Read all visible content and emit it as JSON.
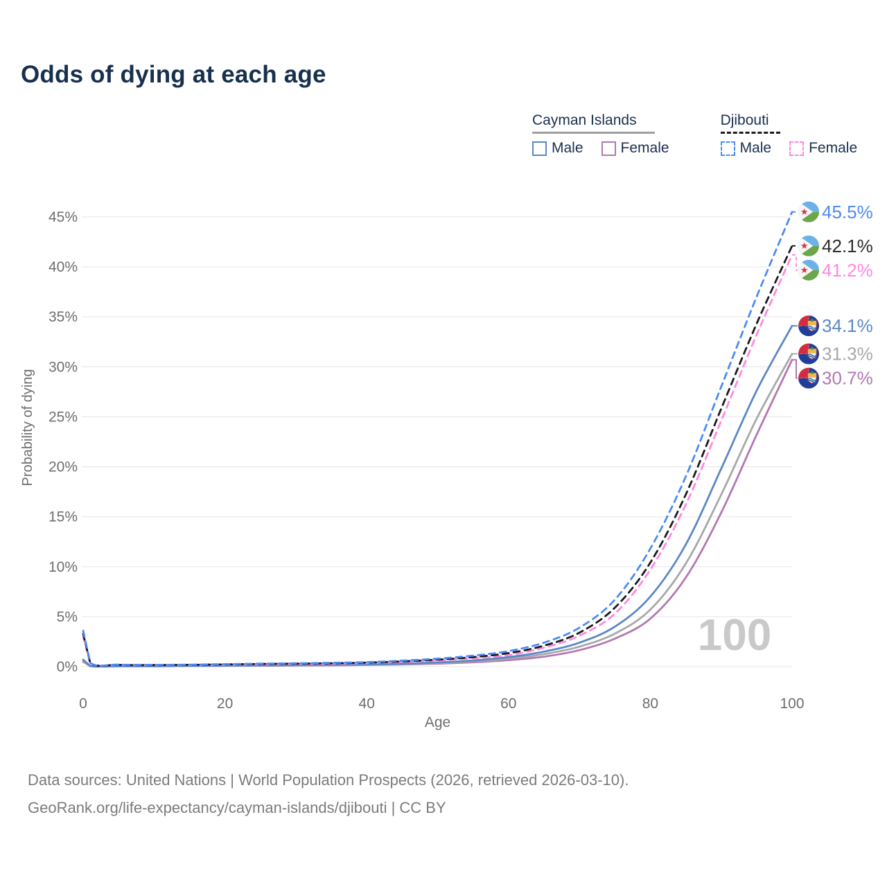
{
  "title": "Odds of dying at each age",
  "legend": {
    "groups": [
      {
        "label": "Cayman Islands",
        "underline_style": "solid",
        "underline_color": "#9e9e9e",
        "items": [
          {
            "label": "Male",
            "color": "#5b87c5",
            "dashed": false
          },
          {
            "label": "Female",
            "color": "#b277b3",
            "dashed": false
          }
        ]
      },
      {
        "label": "Djibouti",
        "underline_style": "dashed",
        "underline_color": "#1a1a1a",
        "items": [
          {
            "label": "Male",
            "color": "#4b8bf5",
            "dashed": true
          },
          {
            "label": "Female",
            "color": "#ff87e3",
            "dashed": true
          }
        ]
      }
    ]
  },
  "chart_data": {
    "type": "line",
    "title": "Odds of dying at each age",
    "xlabel": "Age",
    "ylabel": "Probability of dying",
    "xlim": [
      0,
      100
    ],
    "ylim": [
      0,
      46
    ],
    "xticks": [
      0,
      20,
      40,
      60,
      80,
      100
    ],
    "yticks": [
      0,
      5,
      10,
      15,
      20,
      25,
      30,
      35,
      40,
      45
    ],
    "ytick_suffix": "%",
    "grid": "horizontal",
    "legend_position": "top-right",
    "watermark": "100",
    "x": [
      0,
      1,
      5,
      10,
      15,
      20,
      25,
      30,
      35,
      40,
      45,
      50,
      55,
      60,
      65,
      70,
      75,
      80,
      85,
      90,
      95,
      100
    ],
    "series": [
      {
        "name": "Djibouti Male",
        "country": "Djibouti",
        "sex": "Male",
        "flag": "djibouti",
        "color": "#4b8bf5",
        "label_color": "#4b8bf5",
        "dashed": true,
        "end_label": "45.5%",
        "values": [
          3.6,
          0.4,
          0.2,
          0.18,
          0.2,
          0.25,
          0.3,
          0.33,
          0.38,
          0.45,
          0.6,
          0.8,
          1.1,
          1.55,
          2.4,
          3.9,
          6.7,
          11.8,
          19.0,
          28.0,
          37.0,
          45.5
        ]
      },
      {
        "name": "Djibouti Both sexes",
        "country": "Djibouti",
        "sex": "Both",
        "flag": "djibouti",
        "color": "#1a1a1a",
        "label_color": "#2b2b2b",
        "dashed": true,
        "end_label": "42.1%",
        "values": [
          3.3,
          0.37,
          0.18,
          0.16,
          0.18,
          0.22,
          0.27,
          0.3,
          0.34,
          0.4,
          0.53,
          0.7,
          0.95,
          1.35,
          2.1,
          3.4,
          5.9,
          10.4,
          17.2,
          25.8,
          34.3,
          42.1
        ]
      },
      {
        "name": "Djibouti Female",
        "country": "Djibouti",
        "sex": "Female",
        "flag": "djibouti",
        "color": "#ff87e3",
        "label_color": "#ff87e3",
        "dashed": true,
        "end_label": "41.2%",
        "values": [
          3.0,
          0.34,
          0.17,
          0.15,
          0.17,
          0.2,
          0.24,
          0.27,
          0.3,
          0.36,
          0.47,
          0.62,
          0.85,
          1.15,
          1.9,
          3.1,
          5.3,
          9.7,
          16.2,
          24.6,
          33.2,
          41.2
        ]
      },
      {
        "name": "Cayman Islands Male",
        "country": "Cayman Islands",
        "sex": "Male",
        "flag": "cayman",
        "color": "#5b87c5",
        "label_color": "#5b87c5",
        "dashed": false,
        "end_label": "34.1%",
        "values": [
          0.7,
          0.06,
          0.04,
          0.05,
          0.08,
          0.11,
          0.13,
          0.15,
          0.18,
          0.22,
          0.3,
          0.42,
          0.62,
          0.95,
          1.5,
          2.4,
          4.0,
          7.0,
          12.2,
          19.8,
          27.6,
          34.1
        ]
      },
      {
        "name": "Cayman Islands Both sexes",
        "country": "Cayman Islands",
        "sex": "Both",
        "flag": "cayman",
        "color": "#a8a8a8",
        "label_color": "#a8a8a8",
        "dashed": false,
        "end_label": "31.3%",
        "values": [
          0.6,
          0.05,
          0.035,
          0.045,
          0.07,
          0.1,
          0.12,
          0.13,
          0.16,
          0.2,
          0.26,
          0.36,
          0.53,
          0.8,
          1.25,
          2.0,
          3.3,
          5.7,
          10.3,
          17.2,
          24.8,
          31.3
        ]
      },
      {
        "name": "Cayman Islands Female",
        "country": "Cayman Islands",
        "sex": "Female",
        "flag": "cayman",
        "color": "#b277b3",
        "label_color": "#b277b3",
        "dashed": false,
        "end_label": "30.7%",
        "values": [
          0.5,
          0.045,
          0.03,
          0.04,
          0.06,
          0.08,
          0.1,
          0.11,
          0.13,
          0.17,
          0.22,
          0.3,
          0.44,
          0.65,
          1.0,
          1.65,
          2.8,
          4.8,
          8.9,
          15.4,
          23.2,
          30.7
        ]
      }
    ]
  },
  "colors": {
    "title": "#16304e",
    "tick": "#6e6e6e",
    "axis_title": "#6e6e6e",
    "gridline": "#ebebeb",
    "watermark": "#c9c9c9",
    "footer": "#7b7b7b"
  },
  "footer": {
    "line1": "Data sources: United Nations | World Population Prospects (2026, retrieved 2026-03-10).",
    "line2": "GeoRank.org/life-expectancy/cayman-islands/djibouti | CC BY"
  }
}
